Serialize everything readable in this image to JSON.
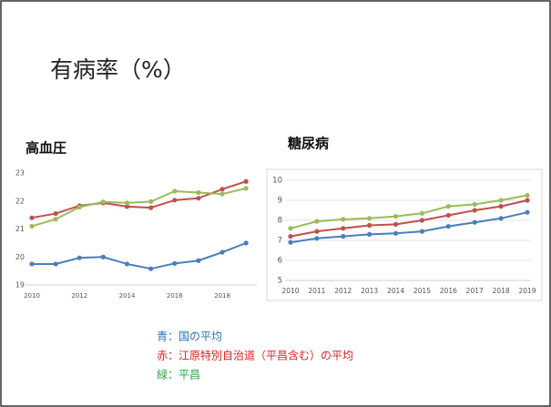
{
  "title": "有病率（%）",
  "notes": [
    "青：国の平均",
    "赤：江原特別自治道（平昌含む）の平均",
    "緑：平昌"
  ],
  "notes_colors": [
    "#2e75b6",
    "#e02020",
    "#2ea043"
  ],
  "chart_data": [
    {
      "type": "line",
      "title": "高血圧",
      "x": [
        2010,
        2011,
        2012,
        2013,
        2014,
        2015,
        2016,
        2017,
        2018,
        2019
      ],
      "xlim": [
        2010,
        2019.3
      ],
      "xticks": [
        2010,
        2012,
        2014,
        2016,
        2018
      ],
      "ylim": [
        19,
        23
      ],
      "yticks": [
        19,
        20,
        21,
        22,
        23
      ],
      "grid": false,
      "series": [
        {
          "color": "#4a7ebb",
          "values": [
            19.75,
            19.75,
            19.97,
            20.0,
            19.75,
            19.58,
            19.77,
            19.87,
            20.17,
            20.5
          ]
        },
        {
          "color": "#c0504d",
          "values": [
            21.4,
            21.55,
            21.83,
            21.93,
            21.8,
            21.76,
            22.03,
            22.1,
            22.42,
            22.7
          ]
        },
        {
          "color": "#9bbb59",
          "values": [
            21.1,
            21.35,
            21.78,
            21.97,
            21.93,
            21.98,
            22.35,
            22.3,
            22.25,
            22.45
          ]
        }
      ]
    },
    {
      "type": "line",
      "title": "糖尿病",
      "x": [
        2010,
        2011,
        2012,
        2013,
        2014,
        2015,
        2016,
        2017,
        2018,
        2019
      ],
      "xlim": [
        2010,
        2019
      ],
      "xticks": [
        2010,
        2011,
        2012,
        2013,
        2014,
        2015,
        2016,
        2017,
        2018,
        2019
      ],
      "ylim": [
        5,
        10
      ],
      "yticks": [
        5,
        6,
        7,
        8,
        9,
        10
      ],
      "grid": true,
      "series": [
        {
          "color": "#4a7ebb",
          "values": [
            6.9,
            7.1,
            7.2,
            7.3,
            7.35,
            7.45,
            7.7,
            7.9,
            8.1,
            8.4
          ]
        },
        {
          "color": "#c0504d",
          "values": [
            7.2,
            7.45,
            7.6,
            7.75,
            7.8,
            8.0,
            8.25,
            8.5,
            8.7,
            9.0
          ]
        },
        {
          "color": "#9bbb59",
          "values": [
            7.6,
            7.95,
            8.05,
            8.1,
            8.2,
            8.35,
            8.7,
            8.8,
            9.0,
            9.25
          ]
        }
      ]
    }
  ]
}
